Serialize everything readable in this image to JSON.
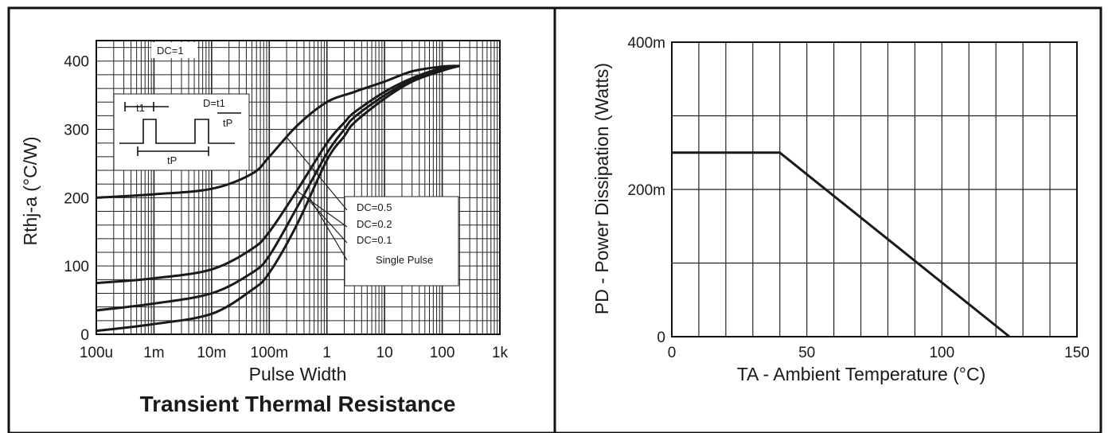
{
  "chart_data": [
    {
      "type": "line",
      "title": "Transient Thermal Resistance",
      "xlabel": "Pulse Width",
      "ylabel": "Rthj-a (°C/W)",
      "x_scale": "log",
      "xlim": [
        0.0001,
        1000
      ],
      "ylim": [
        0,
        430
      ],
      "x_ticks": [
        0.0001,
        0.001,
        0.01,
        0.1,
        1,
        10,
        100,
        1000
      ],
      "x_tick_labels": [
        "100u",
        "1m",
        "10m",
        "100m",
        "1",
        "10",
        "100",
        "1k"
      ],
      "y_ticks": [
        0,
        100,
        200,
        300,
        400
      ],
      "y_tick_labels": [
        "0",
        "100",
        "200",
        "300",
        "400"
      ],
      "grid": true,
      "series": [
        {
          "name": "DC=0.5",
          "x": [
            0.0001,
            0.001,
            0.01,
            0.05,
            0.1,
            0.3,
            1,
            3,
            10,
            30,
            100,
            200
          ],
          "y": [
            200,
            205,
            213,
            235,
            260,
            305,
            340,
            355,
            370,
            385,
            392,
            393
          ]
        },
        {
          "name": "DC=0.2",
          "x": [
            0.0001,
            0.001,
            0.01,
            0.05,
            0.1,
            0.3,
            1,
            2,
            3,
            10,
            30,
            100,
            200
          ],
          "y": [
            75,
            82,
            95,
            125,
            150,
            210,
            280,
            310,
            325,
            355,
            375,
            390,
            393
          ]
        },
        {
          "name": "DC=0.1",
          "x": [
            0.0001,
            0.001,
            0.01,
            0.05,
            0.1,
            0.3,
            1,
            2,
            3,
            10,
            30,
            100,
            200
          ],
          "y": [
            35,
            45,
            60,
            90,
            115,
            185,
            265,
            300,
            318,
            350,
            372,
            388,
            393
          ]
        },
        {
          "name": "Single Pulse",
          "x": [
            0.0001,
            0.001,
            0.01,
            0.05,
            0.1,
            0.3,
            1,
            2,
            3,
            10,
            30,
            100,
            200
          ],
          "y": [
            5,
            15,
            30,
            65,
            90,
            160,
            255,
            290,
            310,
            345,
            370,
            386,
            393
          ]
        }
      ],
      "annotations": {
        "dc1": "DC=1",
        "duty_formula_left": "D=t1",
        "duty_formula_den": "tP",
        "t1": "t1",
        "tP": "tP"
      }
    },
    {
      "type": "line",
      "title": "",
      "xlabel": "TA - Ambient Temperature (°C)",
      "ylabel": "PD - Power Dissipation (Watts)",
      "xlim": [
        0,
        150
      ],
      "ylim": [
        0,
        400
      ],
      "x_ticks": [
        0,
        50,
        100,
        150
      ],
      "x_tick_labels": [
        "0",
        "50",
        "100",
        "150"
      ],
      "y_ticks": [
        0,
        200,
        400
      ],
      "y_tick_labels": [
        "0",
        "200m",
        "400m"
      ],
      "grid": true,
      "series": [
        {
          "x": [
            0,
            40,
            125
          ],
          "y": [
            250,
            250,
            0
          ]
        }
      ]
    }
  ]
}
